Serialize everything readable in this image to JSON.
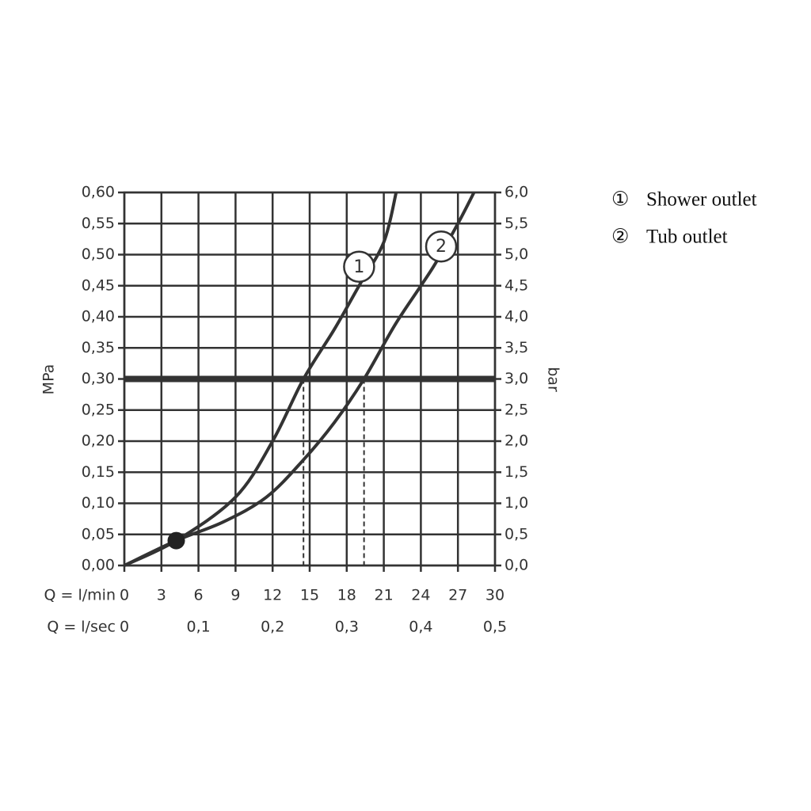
{
  "chart_data": {
    "type": "line",
    "ylabel": "MPa",
    "y2label": "bar",
    "xlabel": "Q = l/min",
    "x2label": "Q = l/sec",
    "xlim": [
      0,
      30
    ],
    "xticks": [
      0,
      3,
      6,
      9,
      12,
      15,
      18,
      21,
      24,
      27,
      30
    ],
    "x2ticks": [
      {
        "value": 0,
        "label": "0"
      },
      {
        "value": 6,
        "label": "0,1"
      },
      {
        "value": 12,
        "label": "0,2"
      },
      {
        "value": 18,
        "label": "0,3"
      },
      {
        "value": 24,
        "label": "0,4"
      },
      {
        "value": 30,
        "label": "0,5"
      }
    ],
    "ylim": [
      0,
      0.6
    ],
    "yticks": [
      {
        "value": 0,
        "label": "0,00"
      },
      {
        "value": 0.05,
        "label": "0,05"
      },
      {
        "value": 0.1,
        "label": "0,10"
      },
      {
        "value": 0.15,
        "label": "0,15"
      },
      {
        "value": 0.2,
        "label": "0,20"
      },
      {
        "value": 0.25,
        "label": "0,25"
      },
      {
        "value": 0.3,
        "label": "0,30"
      },
      {
        "value": 0.35,
        "label": "0,35"
      },
      {
        "value": 0.4,
        "label": "0,40"
      },
      {
        "value": 0.45,
        "label": "0,45"
      },
      {
        "value": 0.5,
        "label": "0,50"
      },
      {
        "value": 0.55,
        "label": "0,55"
      },
      {
        "value": 0.6,
        "label": "0,60"
      }
    ],
    "y2lim": [
      0,
      6
    ],
    "y2ticks": [
      {
        "value": 0,
        "label": "0,0"
      },
      {
        "value": 0.5,
        "label": "0,5"
      },
      {
        "value": 1,
        "label": "1,0"
      },
      {
        "value": 1.5,
        "label": "1,5"
      },
      {
        "value": 2,
        "label": "2,0"
      },
      {
        "value": 2.5,
        "label": "2,5"
      },
      {
        "value": 3,
        "label": "3,0"
      },
      {
        "value": 3.5,
        "label": "3,5"
      },
      {
        "value": 4,
        "label": "4,0"
      },
      {
        "value": 4.5,
        "label": "4,5"
      },
      {
        "value": 5,
        "label": "5,0"
      },
      {
        "value": 5.5,
        "label": "5,5"
      },
      {
        "value": 6,
        "label": "6,0"
      }
    ],
    "grid": true,
    "reference_line": 0.3,
    "drop_lines": [
      14.5,
      19.4
    ],
    "point": {
      "x": 4.2,
      "y": 0.04
    },
    "series": [
      {
        "name": "Shower outlet",
        "label": "1",
        "symbol": "①",
        "color": "#333333",
        "x": [
          0,
          4.2,
          9,
          12,
          14.5,
          17,
          19,
          21,
          22
        ],
        "values": [
          0,
          0.04,
          0.11,
          0.2,
          0.3,
          0.38,
          0.45,
          0.52,
          0.6
        ]
      },
      {
        "name": "Tub outlet",
        "label": "2",
        "symbol": "②",
        "color": "#333333",
        "x": [
          0,
          4.2,
          8,
          11.5,
          14.5,
          17,
          19.4,
          22,
          25,
          27,
          28.3
        ],
        "values": [
          0,
          0.04,
          0.07,
          0.11,
          0.17,
          0.23,
          0.3,
          0.39,
          0.48,
          0.55,
          0.6
        ]
      }
    ]
  }
}
